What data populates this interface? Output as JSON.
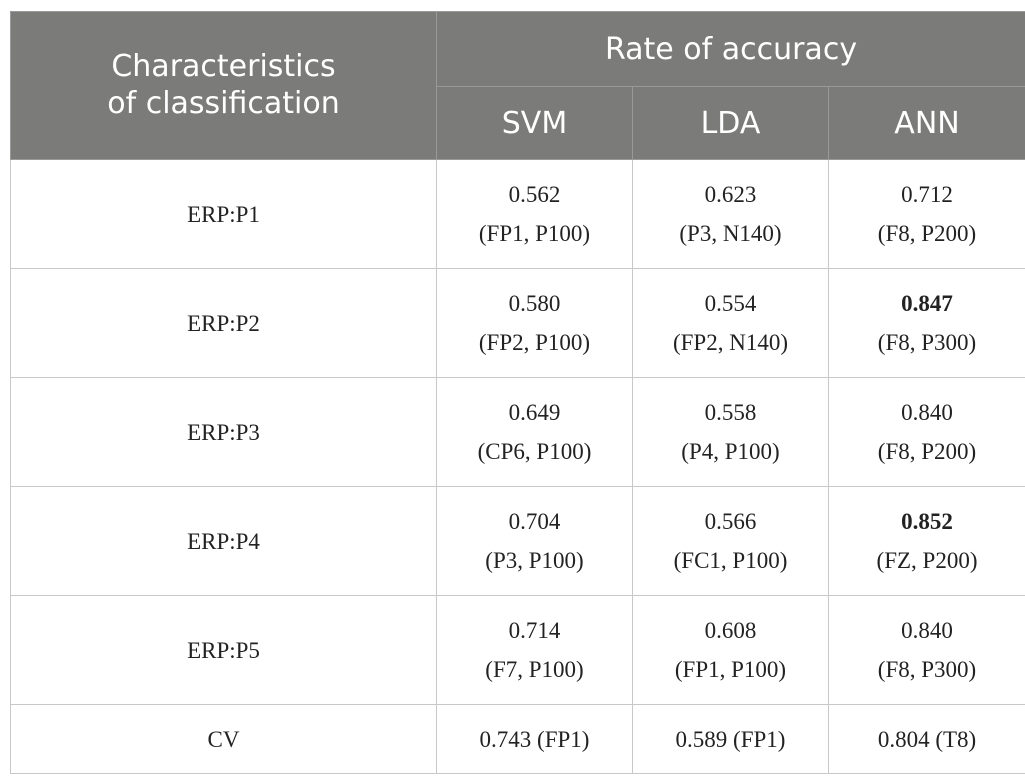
{
  "header": {
    "characteristics": [
      "Characteristics",
      "of classification"
    ],
    "rate_of_accuracy": "Rate of accuracy",
    "methods": [
      "SVM",
      "LDA",
      "ANN"
    ]
  },
  "rows": [
    {
      "label": "ERP:P1",
      "cells": [
        {
          "value": "0.562",
          "detail": "(FP1, P100)",
          "bold": false
        },
        {
          "value": "0.623",
          "detail": "(P3, N140)",
          "bold": false
        },
        {
          "value": "0.712",
          "detail": "(F8, P200)",
          "bold": false
        }
      ]
    },
    {
      "label": "ERP:P2",
      "cells": [
        {
          "value": "0.580",
          "detail": "(FP2, P100)",
          "bold": false
        },
        {
          "value": "0.554",
          "detail": "(FP2, N140)",
          "bold": false
        },
        {
          "value": "0.847",
          "detail": "(F8, P300)",
          "bold": true
        }
      ]
    },
    {
      "label": "ERP:P3",
      "cells": [
        {
          "value": "0.649",
          "detail": "(CP6, P100)",
          "bold": false
        },
        {
          "value": "0.558",
          "detail": "(P4, P100)",
          "bold": false
        },
        {
          "value": "0.840",
          "detail": "(F8, P200)",
          "bold": false
        }
      ]
    },
    {
      "label": "ERP:P4",
      "cells": [
        {
          "value": "0.704",
          "detail": "(P3, P100)",
          "bold": false
        },
        {
          "value": "0.566",
          "detail": "(FC1, P100)",
          "bold": false
        },
        {
          "value": "0.852",
          "detail": "(FZ, P200)",
          "bold": true
        }
      ]
    },
    {
      "label": "ERP:P5",
      "cells": [
        {
          "value": "0.714",
          "detail": "(F7, P100)",
          "bold": false
        },
        {
          "value": "0.608",
          "detail": "(FP1, P100)",
          "bold": false
        },
        {
          "value": "0.840",
          "detail": "(F8, P300)",
          "bold": false
        }
      ]
    }
  ],
  "cv_row": {
    "label": "CV",
    "cells": [
      "0.743 (FP1)",
      "0.589 (FP1)",
      "0.804 (T8)"
    ]
  },
  "colors": {
    "header_bg": "#7b7b7a",
    "header_text": "#ffffff",
    "grid_line": "#c8c8c8"
  }
}
